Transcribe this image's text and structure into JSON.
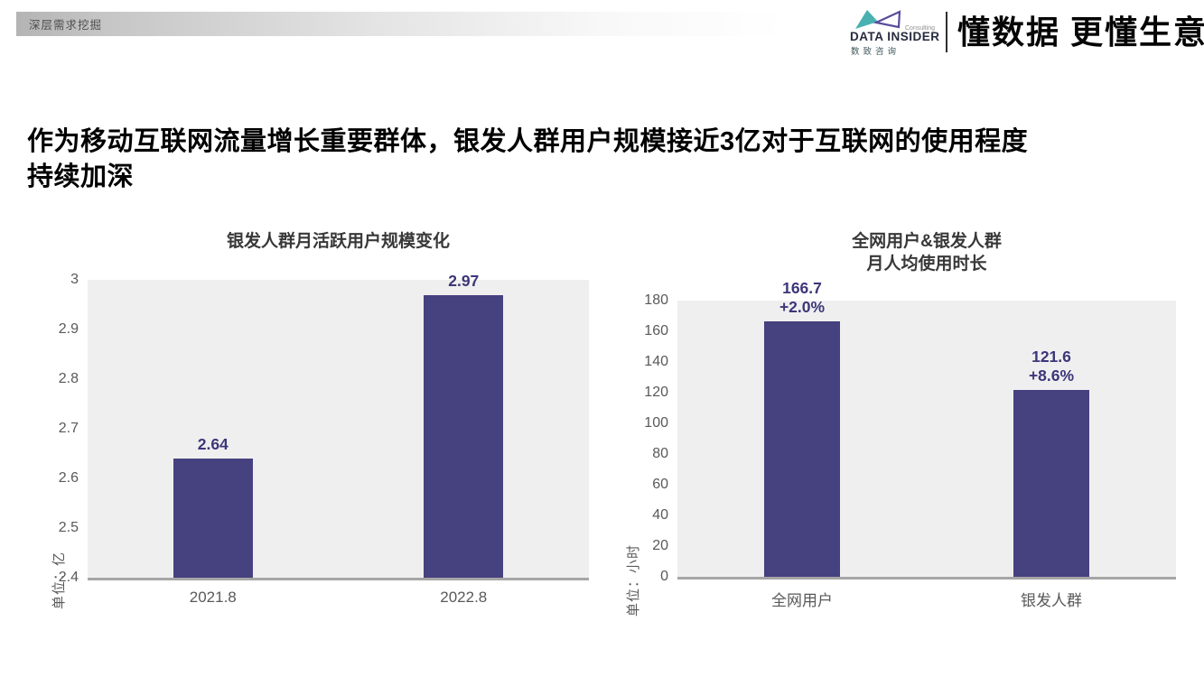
{
  "page": {
    "header_tab": "深层需求挖掘",
    "logo": {
      "brand": "DATA INSIDER",
      "consulting": "Consulting",
      "brand_cn": "数致咨询",
      "tagline": "懂数据 更懂生意"
    },
    "title_line1": "作为移动互联网流量增长重要群体，银发人群用户规模接近3亿对于互联网的使用程度",
    "title_line2": "持续加深"
  },
  "colors": {
    "bar": "#46417f",
    "bar_label": "#3c3778",
    "axis_text": "#595959",
    "plot_background": "#f0eff0",
    "baseline": "#a6a6a6",
    "logo_teal": "#35a8aa",
    "logo_purple": "#5a4b9c"
  },
  "chart_data": [
    {
      "type": "bar",
      "title": "银发人群月活跃用户规模变化",
      "title_lines": [
        "银发人群月活跃用户规模变化"
      ],
      "ylabel": "单位：亿",
      "xlabel": "",
      "categories": [
        "2021.8",
        "2022.8"
      ],
      "values": [
        2.64,
        2.97
      ],
      "bar_labels": [
        [
          "2.64"
        ],
        [
          "2.97"
        ]
      ],
      "y_ticks": [
        "3",
        "2.9",
        "2.8",
        "2.7",
        "2.6",
        "2.5",
        "2.4"
      ],
      "ylim": [
        2.4,
        3
      ],
      "grid": false,
      "legend": false
    },
    {
      "type": "bar",
      "title": "全网用户&银发人群 月人均使用时长",
      "title_lines": [
        "全网用户&银发人群",
        "月人均使用时长"
      ],
      "ylabel": "单位：小时",
      "xlabel": "",
      "categories": [
        "全网用户",
        "银发人群"
      ],
      "values": [
        166.7,
        121.6
      ],
      "bar_labels": [
        [
          "166.7",
          "+2.0%"
        ],
        [
          "121.6",
          "+8.6%"
        ]
      ],
      "y_ticks": [
        "180",
        "160",
        "140",
        "120",
        "100",
        "80",
        "60",
        "40",
        "20",
        "0"
      ],
      "ylim": [
        0,
        180
      ],
      "grid": false,
      "legend": false
    }
  ]
}
